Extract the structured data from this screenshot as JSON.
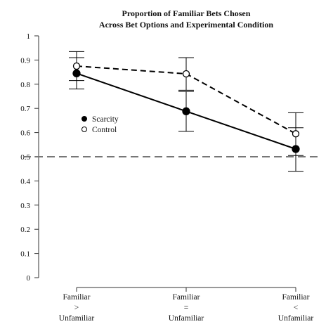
{
  "chart_data": {
    "type": "line",
    "title_lines": [
      "Proportion of Familiar Bets Chosen",
      "Across Bet Options and Experimental Condition"
    ],
    "xlabel": "",
    "ylabel": "",
    "categories": [
      [
        "Familiar",
        ">",
        "Unfamiliar"
      ],
      [
        "Familiar",
        "=",
        "Unfamiliar"
      ],
      [
        "Familiar",
        "<",
        "Unfamiliar"
      ]
    ],
    "ylim": [
      0,
      1
    ],
    "yticks": [
      0,
      0.1,
      0.2,
      0.3,
      0.4,
      0.5,
      0.6,
      0.7,
      0.8,
      0.9,
      1
    ],
    "ytick_labels": [
      "0",
      "0.1",
      "0.2",
      "0.3",
      "0.4",
      "0.5",
      "0.6",
      "0.7",
      "0.8",
      "0.9",
      "1"
    ],
    "reference_line": {
      "y": 0.5,
      "style": "dashed",
      "color": "#777777"
    },
    "grid": false,
    "legend_position": "middle-left",
    "series": [
      {
        "name": "Scarcity",
        "marker": "filled-circle",
        "line_style": "solid",
        "color": "#000000",
        "values": [
          0.845,
          0.688,
          0.532
        ],
        "error_low": [
          0.78,
          0.605,
          0.44
        ],
        "error_high": [
          0.91,
          0.77,
          0.62
        ]
      },
      {
        "name": "Control",
        "marker": "open-circle",
        "line_style": "dashed",
        "color": "#000000",
        "values": [
          0.875,
          0.843,
          0.595
        ],
        "error_low": [
          0.815,
          0.775,
          0.505
        ],
        "error_high": [
          0.935,
          0.91,
          0.682
        ]
      }
    ]
  }
}
